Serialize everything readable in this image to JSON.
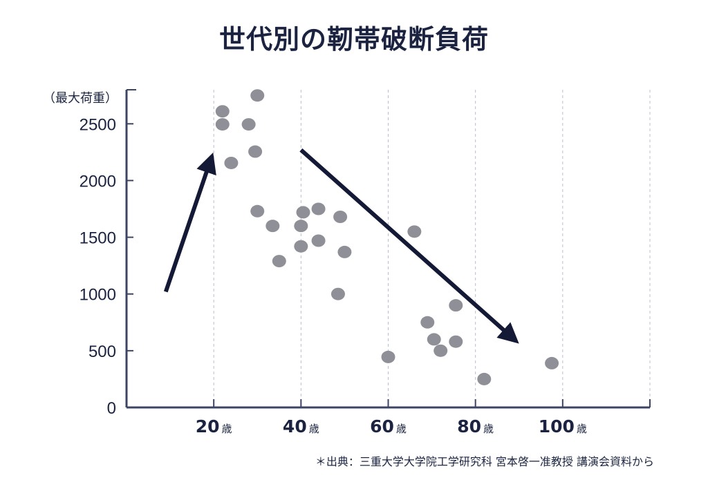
{
  "chart_data": {
    "type": "scatter",
    "title": "世代別の靭帯破断負荷",
    "ylabel": "（最大荷重）",
    "xlabel": "",
    "ylim": [
      0,
      2800
    ],
    "xlim": [
      0,
      120
    ],
    "yticks": [
      "0",
      "500",
      "1000",
      "1500",
      "2000",
      "2500"
    ],
    "xticks": [
      {
        "value": 20,
        "num": "20",
        "unit": "歳"
      },
      {
        "value": 40,
        "num": "40",
        "unit": "歳"
      },
      {
        "value": 60,
        "num": "60",
        "unit": "歳"
      },
      {
        "value": 80,
        "num": "80",
        "unit": "歳"
      },
      {
        "value": 100,
        "num": "100",
        "unit": "歳"
      }
    ],
    "grid": "vertical dashed at 20,40,60,80,100,120",
    "points": [
      {
        "x": 22,
        "y": 2610
      },
      {
        "x": 22,
        "y": 2495
      },
      {
        "x": 24,
        "y": 2155
      },
      {
        "x": 28,
        "y": 2495
      },
      {
        "x": 30,
        "y": 2750
      },
      {
        "x": 29.5,
        "y": 2255
      },
      {
        "x": 30,
        "y": 1730
      },
      {
        "x": 33.5,
        "y": 1600
      },
      {
        "x": 35,
        "y": 1290
      },
      {
        "x": 40,
        "y": 1600
      },
      {
        "x": 40.5,
        "y": 1720
      },
      {
        "x": 40,
        "y": 1420
      },
      {
        "x": 44,
        "y": 1750
      },
      {
        "x": 44,
        "y": 1470
      },
      {
        "x": 48.5,
        "y": 1000
      },
      {
        "x": 49,
        "y": 1680
      },
      {
        "x": 50,
        "y": 1370
      },
      {
        "x": 60,
        "y": 445
      },
      {
        "x": 66,
        "y": 1550
      },
      {
        "x": 69,
        "y": 750
      },
      {
        "x": 70.5,
        "y": 600
      },
      {
        "x": 72,
        "y": 500
      },
      {
        "x": 75.5,
        "y": 900
      },
      {
        "x": 75.5,
        "y": 580
      },
      {
        "x": 82,
        "y": 250
      },
      {
        "x": 97.5,
        "y": 390
      }
    ],
    "arrows": [
      {
        "from": [
          9,
          1020
        ],
        "to": [
          19,
          2150
        ]
      },
      {
        "from": [
          40,
          2270
        ],
        "to": [
          88,
          630
        ]
      }
    ],
    "point_color": "#8e8f97",
    "arrow_color": "#141a36",
    "axis_color": "#3d4463",
    "grid_color": "#b9bccb"
  },
  "source": "＊出典：三重大学大学院工学研究科 宮本啓一准教授 講演会資料から"
}
